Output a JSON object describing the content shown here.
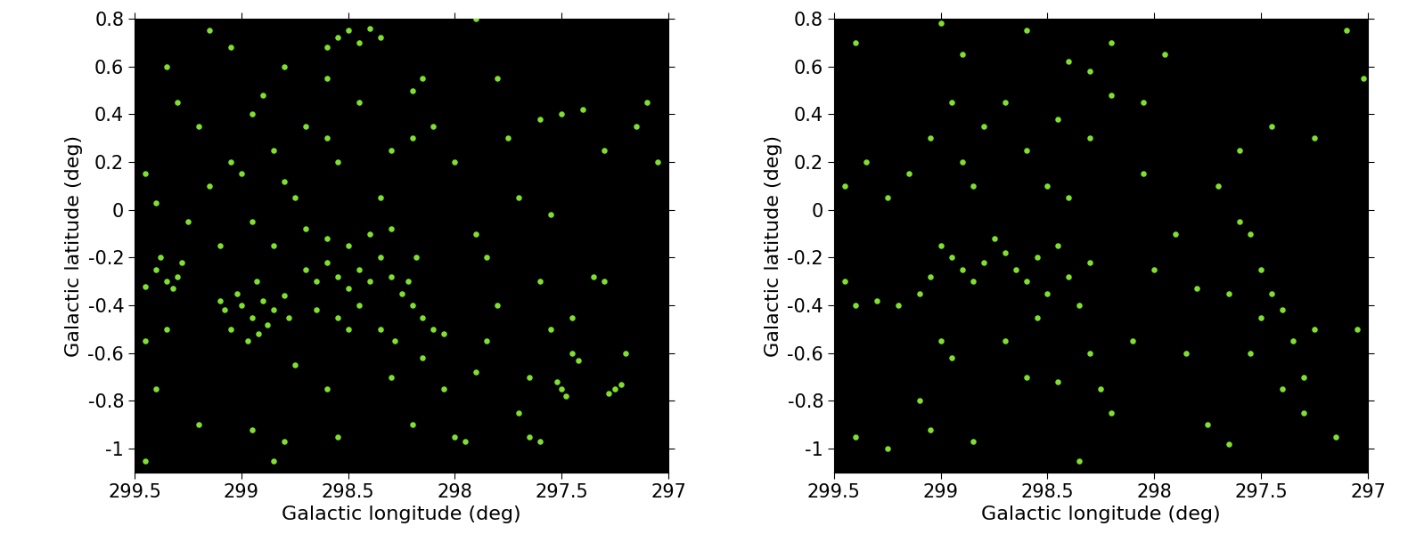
{
  "chart_data": [
    {
      "type": "scatter",
      "xlabel": "Galactic longitude (deg)",
      "ylabel": "Galactic latitude (deg)",
      "color": "#7fe030",
      "marker": "o",
      "xlim": [
        299.5,
        297
      ],
      "xticks": [
        299.5,
        299,
        298.5,
        298,
        297.5,
        297
      ],
      "ylim": [
        -1.1,
        0.8
      ],
      "yticks": [
        -1,
        -0.8,
        -0.6,
        -0.4,
        -0.2,
        0,
        0.2,
        0.4,
        0.6,
        0.8
      ],
      "x": [
        299.0,
        298.95,
        298.9,
        299.05,
        298.92,
        298.85,
        299.02,
        298.97,
        298.88,
        299.08,
        298.8,
        299.1,
        298.93,
        298.78,
        298.7,
        298.65,
        298.6,
        298.55,
        298.5,
        298.45,
        298.4,
        298.35,
        298.3,
        298.25,
        298.2,
        298.15,
        298.1,
        298.05,
        298.6,
        298.5,
        298.4,
        298.3,
        298.7,
        298.65,
        298.55,
        298.45,
        298.35,
        298.28,
        298.5,
        298.18,
        298.22,
        299.4,
        299.35,
        299.3,
        299.38,
        299.32,
        299.45,
        299.28,
        299.45,
        299.4,
        299.3,
        299.2,
        299.15,
        299.05,
        299.0,
        298.95,
        298.9,
        298.8,
        298.85,
        298.75,
        298.7,
        298.6,
        298.55,
        298.45,
        298.35,
        298.3,
        298.2,
        298.15,
        298.2,
        299.35,
        299.15,
        299.05,
        298.8,
        298.6,
        299.25,
        299.1,
        298.95,
        298.85,
        298.55,
        298.5,
        298.45,
        298.4,
        298.35,
        298.6,
        297.5,
        297.48,
        297.52,
        297.25,
        297.22,
        297.28,
        297.45,
        297.42,
        297.35,
        297.3,
        297.55,
        297.6,
        297.5,
        297.4,
        297.3,
        297.15,
        297.1,
        297.05,
        297.65,
        297.6,
        297.7,
        297.55,
        297.45,
        297.2,
        298.95,
        298.85,
        298.8,
        299.2,
        299.4,
        299.45,
        298.6,
        298.55,
        298.3,
        298.2,
        298.0,
        297.95,
        298.05,
        297.8,
        297.85,
        297.9,
        297.75,
        297.8,
        297.9,
        298.1,
        298.0,
        297.6,
        297.7,
        297.85,
        299.45,
        299.35,
        298.75,
        298.15,
        297.65,
        297.9
      ],
      "y": [
        -0.4,
        -0.45,
        -0.38,
        -0.5,
        -0.52,
        -0.42,
        -0.35,
        -0.55,
        -0.48,
        -0.42,
        -0.36,
        -0.38,
        -0.3,
        -0.45,
        -0.25,
        -0.3,
        -0.22,
        -0.28,
        -0.33,
        -0.25,
        -0.3,
        -0.2,
        -0.28,
        -0.35,
        -0.4,
        -0.45,
        -0.5,
        -0.52,
        -0.12,
        -0.15,
        -0.1,
        -0.08,
        -0.08,
        -0.42,
        -0.45,
        -0.4,
        -0.5,
        -0.55,
        -0.5,
        -0.2,
        -0.3,
        -0.25,
        -0.3,
        -0.28,
        -0.2,
        -0.33,
        -0.32,
        -0.22,
        0.15,
        0.03,
        0.45,
        0.35,
        0.1,
        0.2,
        0.15,
        0.4,
        0.48,
        0.12,
        0.25,
        0.05,
        0.35,
        0.3,
        0.2,
        0.45,
        0.05,
        0.25,
        0.3,
        0.55,
        0.5,
        0.6,
        0.75,
        0.68,
        0.6,
        0.55,
        -0.05,
        -0.15,
        -0.05,
        -0.15,
        0.72,
        0.75,
        0.7,
        0.76,
        0.72,
        0.68,
        -0.75,
        -0.78,
        -0.72,
        -0.75,
        -0.73,
        -0.77,
        -0.6,
        -0.63,
        -0.28,
        -0.3,
        -0.02,
        0.38,
        0.4,
        0.42,
        0.25,
        0.35,
        0.45,
        0.2,
        -0.95,
        -0.97,
        -0.85,
        -0.5,
        -0.45,
        -0.6,
        -0.92,
        -1.05,
        -0.97,
        -0.9,
        -0.75,
        -1.05,
        -0.75,
        -0.95,
        -0.7,
        -0.9,
        -0.95,
        -0.97,
        -0.75,
        -0.4,
        -0.55,
        -0.1,
        0.3,
        0.55,
        0.8,
        0.35,
        0.2,
        -0.3,
        0.05,
        -0.2,
        -0.55,
        -0.5,
        -0.65,
        -0.62,
        -0.7,
        -0.68
      ]
    },
    {
      "type": "scatter",
      "xlabel": "Galactic longitude (deg)",
      "ylabel": "Galactic latitude (deg)",
      "color": "#7fe030",
      "marker": "o",
      "xlim": [
        299.5,
        297
      ],
      "xticks": [
        299.5,
        299,
        298.5,
        298,
        297.5,
        297
      ],
      "ylim": [
        -1.1,
        0.8
      ],
      "yticks": [
        -1,
        -0.8,
        -0.6,
        -0.4,
        -0.2,
        0,
        0.2,
        0.4,
        0.6,
        0.8
      ],
      "x": [
        299.0,
        298.95,
        298.9,
        298.85,
        298.8,
        299.05,
        298.75,
        298.7,
        298.65,
        298.6,
        298.55,
        298.5,
        298.45,
        298.4,
        298.35,
        298.3,
        299.45,
        299.35,
        299.25,
        299.15,
        299.05,
        298.95,
        298.9,
        298.85,
        298.8,
        298.7,
        298.6,
        298.5,
        298.45,
        298.4,
        298.3,
        298.2,
        299.4,
        299.0,
        298.9,
        298.6,
        298.4,
        298.2,
        298.05,
        298.3,
        299.45,
        299.4,
        299.3,
        299.2,
        299.1,
        299.0,
        298.95,
        299.1,
        299.05,
        299.4,
        299.25,
        298.85,
        298.7,
        298.6,
        298.55,
        298.45,
        298.3,
        298.2,
        298.1,
        298.35,
        298.25,
        297.6,
        297.55,
        297.5,
        297.45,
        297.4,
        297.35,
        297.3,
        297.25,
        297.5,
        297.55,
        297.65,
        297.7,
        297.6,
        297.45,
        297.25,
        297.1,
        297.02,
        297.05,
        297.15,
        297.65,
        297.75,
        297.85,
        297.8,
        298.0,
        297.9,
        298.05,
        297.95,
        297.3,
        297.4
      ],
      "y": [
        -0.15,
        -0.2,
        -0.25,
        -0.3,
        -0.22,
        -0.28,
        -0.12,
        -0.18,
        -0.25,
        -0.3,
        -0.2,
        -0.35,
        -0.15,
        -0.28,
        -0.4,
        -0.22,
        0.1,
        0.2,
        0.05,
        0.15,
        0.3,
        0.45,
        0.2,
        0.1,
        0.35,
        0.45,
        0.25,
        0.1,
        0.38,
        0.05,
        0.3,
        0.48,
        0.7,
        0.78,
        0.65,
        0.75,
        0.62,
        0.7,
        0.45,
        0.58,
        -0.3,
        -0.4,
        -0.38,
        -0.4,
        -0.35,
        -0.55,
        -0.62,
        -0.8,
        -0.92,
        -0.95,
        -1.0,
        -0.97,
        -0.55,
        -0.7,
        -0.45,
        -0.72,
        -0.6,
        -0.85,
        -0.55,
        -1.05,
        -0.75,
        -0.05,
        -0.1,
        -0.25,
        -0.35,
        -0.42,
        -0.55,
        -0.7,
        -0.5,
        -0.45,
        -0.6,
        -0.35,
        0.1,
        0.25,
        0.35,
        0.3,
        0.75,
        0.55,
        -0.5,
        -0.95,
        -0.98,
        -0.9,
        -0.6,
        -0.33,
        -0.25,
        -0.1,
        0.15,
        0.65,
        -0.85,
        -0.75
      ]
    }
  ]
}
